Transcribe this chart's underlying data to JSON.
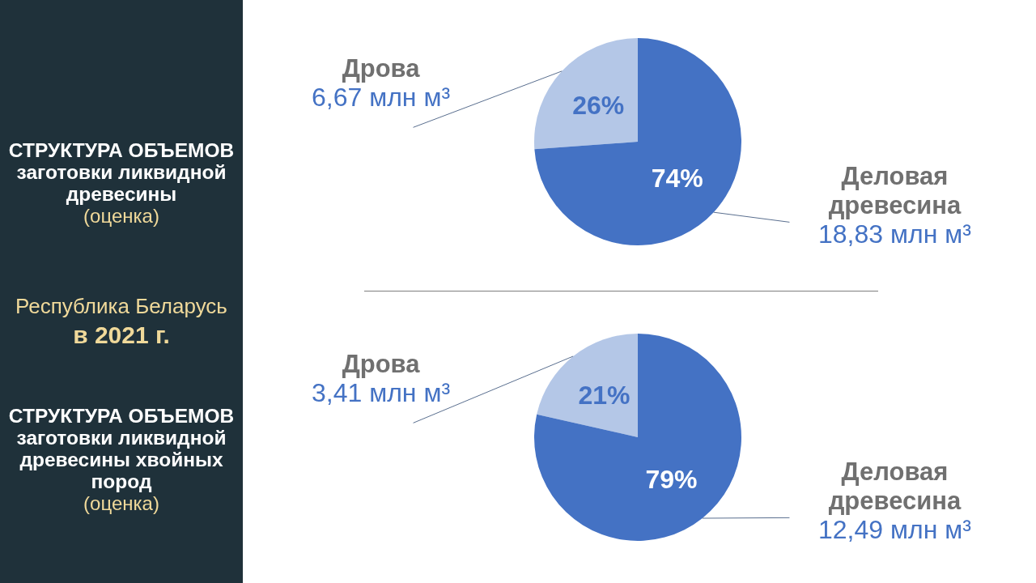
{
  "chart_data": [
    {
      "type": "pie",
      "title": "СТРУКТУРА ОБЪЕМОВ заготовки ликвидной древесины",
      "subtitle": "(оценка)",
      "categories": [
        "Дрова",
        "Деловая древесина"
      ],
      "values": [
        6.67,
        18.83
      ],
      "value_labels": [
        "6,67 млн м³",
        "18,83 млн м³"
      ],
      "colors": [
        "#b4c7e7",
        "#4472c4"
      ],
      "annotations": [
        {
          "text": "26%",
          "x": "Дрова"
        },
        {
          "text": "74%",
          "x": "Деловая древесина"
        },
        "Республика Беларусь",
        "в 2021 г."
      ]
    },
    {
      "type": "pie",
      "title": "СТРУКТУРА ОБЪЕМОВ заготовки ликвидной древесины хвойных пород",
      "subtitle": "(оценка)",
      "categories": [
        "Дрова",
        "Деловая древесина"
      ],
      "values": [
        3.41,
        12.49
      ],
      "value_labels": [
        "3,41 млн м³",
        "12,49 млн м³"
      ],
      "colors": [
        "#b4c7e7",
        "#4472c4"
      ],
      "annotations": [
        {
          "text": "21%",
          "x": "Дрова"
        },
        {
          "text": "79%",
          "x": "Деловая древесина"
        }
      ]
    }
  ]
}
